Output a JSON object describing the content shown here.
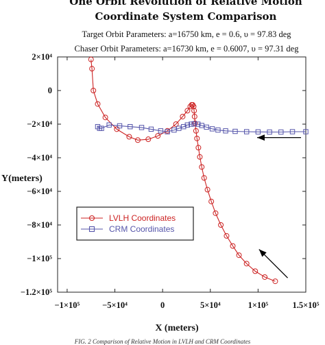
{
  "chart_data": {
    "type": "line",
    "title_line1": "One Orbit Revolution of Relative Motion",
    "title_line2": "Coordinate System Comparison",
    "subtitle_target": "Target Orbit Parameters:  a=16750 km, e = 0.6, υ = 97.83 deg",
    "subtitle_chaser": "Chaser Orbit Parameters: a=16730 km, e = 0.6007, υ = 97.31 deg",
    "xlabel": "X (meters)",
    "ylabel": "Y(meters)",
    "xlim": [
      -110000,
      150000
    ],
    "ylim": [
      -120000,
      20000
    ],
    "x_ticks": [
      {
        "value": -100000,
        "label": "−1×10⁵"
      },
      {
        "value": -50000,
        "label": "−5×10⁴"
      },
      {
        "value": 0,
        "label": "0"
      },
      {
        "value": 50000,
        "label": "5×10⁴"
      },
      {
        "value": 100000,
        "label": "1×10⁵"
      },
      {
        "value": 150000,
        "label": "1.5×10⁵"
      }
    ],
    "y_ticks": [
      {
        "value": 20000,
        "label": "2×10⁴"
      },
      {
        "value": 0,
        "label": "0"
      },
      {
        "value": -20000,
        "label": "−2×10⁴"
      },
      {
        "value": -40000,
        "label": "−4×10⁴"
      },
      {
        "value": -60000,
        "label": "−6×10⁴"
      },
      {
        "value": -80000,
        "label": "−8×10⁴"
      },
      {
        "value": -100000,
        "label": "−1×10⁵"
      },
      {
        "value": -120000,
        "label": "−1.2×10⁵"
      }
    ],
    "grid": false,
    "legend_position": "lower-left",
    "series": [
      {
        "name": "LVLH Coordinates",
        "color": "#cc2222",
        "marker": "circle",
        "points": [
          [
            -75000,
            18500
          ],
          [
            -74000,
            13000
          ],
          [
            -72500,
            0
          ],
          [
            -68000,
            -8000
          ],
          [
            -60000,
            -16000
          ],
          [
            -48000,
            -23000
          ],
          [
            -35000,
            -27500
          ],
          [
            -26000,
            -29500
          ],
          [
            -15000,
            -29000
          ],
          [
            -5000,
            -27000
          ],
          [
            5000,
            -24000
          ],
          [
            14000,
            -20000
          ],
          [
            21000,
            -15500
          ],
          [
            26000,
            -12000
          ],
          [
            29000,
            -9500
          ],
          [
            30500,
            -8500
          ],
          [
            31500,
            -8500
          ],
          [
            32500,
            -9500
          ],
          [
            33000,
            -12000
          ],
          [
            33500,
            -15500
          ],
          [
            34000,
            -19500
          ],
          [
            35000,
            -24000
          ],
          [
            36000,
            -28500
          ],
          [
            37500,
            -34000
          ],
          [
            39000,
            -39500
          ],
          [
            41000,
            -45500
          ],
          [
            43500,
            -52000
          ],
          [
            47000,
            -59000
          ],
          [
            51000,
            -66000
          ],
          [
            55500,
            -73000
          ],
          [
            61000,
            -80000
          ],
          [
            67000,
            -86500
          ],
          [
            73500,
            -92500
          ],
          [
            80000,
            -98000
          ],
          [
            88000,
            -103000
          ],
          [
            97000,
            -107500
          ],
          [
            107000,
            -111000
          ],
          [
            118000,
            -113500
          ]
        ]
      },
      {
        "name": "CRM Coordinates",
        "color": "#5555aa",
        "marker": "square",
        "points": [
          [
            -68000,
            -21500
          ],
          [
            -66000,
            -22500
          ],
          [
            -64000,
            -22500
          ],
          [
            -56000,
            -20500
          ],
          [
            -45000,
            -21000
          ],
          [
            -34000,
            -21500
          ],
          [
            -22000,
            -22000
          ],
          [
            -12000,
            -23000
          ],
          [
            -2000,
            -24000
          ],
          [
            5000,
            -24500
          ],
          [
            12000,
            -23500
          ],
          [
            17000,
            -22500
          ],
          [
            22000,
            -21500
          ],
          [
            26000,
            -20500
          ],
          [
            30000,
            -20000
          ],
          [
            33000,
            -19800
          ],
          [
            37000,
            -20000
          ],
          [
            41000,
            -20800
          ],
          [
            46000,
            -21800
          ],
          [
            52000,
            -22800
          ],
          [
            58000,
            -23500
          ],
          [
            66000,
            -24000
          ],
          [
            76000,
            -24300
          ],
          [
            88000,
            -24500
          ],
          [
            100000,
            -24600
          ],
          [
            112000,
            -24700
          ],
          [
            124000,
            -24700
          ],
          [
            136000,
            -24500
          ],
          [
            150000,
            -24500
          ]
        ]
      }
    ],
    "annotations": [
      {
        "type": "arrow",
        "from": [
          145000,
          -28000
        ],
        "to": [
          99000,
          -28000
        ],
        "color": "#000000"
      },
      {
        "type": "arrow",
        "from": [
          131000,
          -111500
        ],
        "to": [
          101000,
          -94500
        ],
        "color": "#000000"
      }
    ]
  },
  "caption": "FIG. 2    Comparison of Relative Motion in LVLH and CRM Coordinates"
}
